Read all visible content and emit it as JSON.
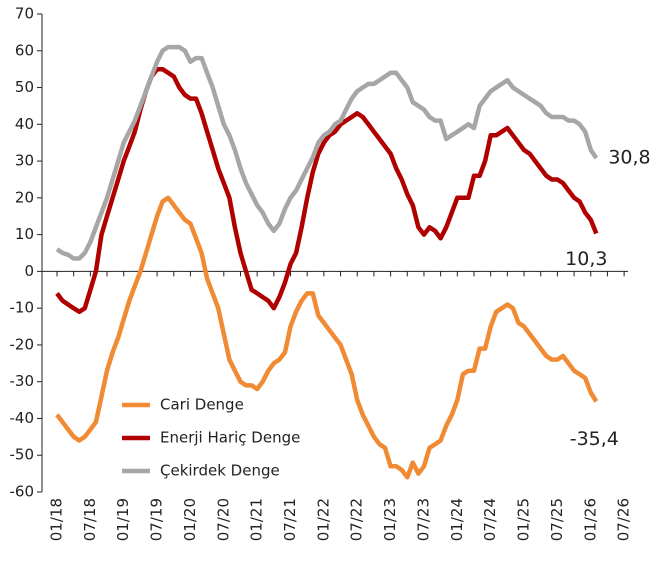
{
  "chart_data": {
    "type": "line",
    "categories": [
      "01/18",
      null,
      null,
      null,
      null,
      null,
      "07/18",
      null,
      null,
      null,
      null,
      null,
      "01/19",
      null,
      null,
      null,
      null,
      null,
      "07/19",
      null,
      null,
      null,
      null,
      null,
      "01/20",
      null,
      null,
      null,
      null,
      null,
      "07/20",
      null,
      null,
      null,
      null,
      null,
      "01/21",
      null,
      null,
      null,
      null,
      null,
      "07/21",
      null,
      null,
      null,
      null,
      null,
      "01/22",
      null,
      null,
      null,
      null,
      null,
      "07/22",
      null,
      null,
      null,
      null,
      null,
      "01/23",
      null,
      null,
      null,
      null,
      null,
      "07/23",
      null,
      null,
      null,
      null,
      null,
      "01/24",
      null,
      null,
      null,
      null,
      null,
      "07/24",
      null,
      null,
      null,
      null,
      null,
      "01/25",
      null,
      null,
      null,
      null,
      null,
      "07/25",
      null,
      null,
      null,
      null,
      null,
      "01/26",
      null,
      null,
      null,
      null,
      null,
      "07/26"
    ],
    "series": [
      {
        "name": "Cari Denge",
        "color": "#f08a33",
        "values": [
          -39,
          -41,
          -43,
          -45,
          -46,
          -45,
          -43,
          -41,
          -34,
          -27,
          -22,
          -18,
          -13,
          -8,
          -4,
          0,
          5,
          10,
          15,
          19,
          20,
          18,
          16,
          14,
          13,
          9,
          5,
          -2,
          -6,
          -10,
          -17,
          -24,
          -27,
          -30,
          -31,
          -31,
          -32,
          -30,
          -27,
          -25,
          -24,
          -22,
          -15,
          -11,
          -8,
          -6,
          -6,
          -12,
          -14,
          -16,
          -18,
          -20,
          -24,
          -28,
          -35,
          -39,
          -42,
          -45,
          -47,
          -48,
          -53,
          -53,
          -54,
          -56,
          -52,
          -55,
          -53,
          -48,
          -47,
          -46,
          -42,
          -39,
          -35,
          -28,
          -27,
          -27,
          -21,
          -21,
          -15,
          -11,
          -10,
          -9,
          -10,
          -14,
          -15,
          -17,
          -19,
          -21,
          -23,
          -24,
          -24,
          -23,
          -25,
          -27,
          -28,
          -29,
          -33,
          -35.4,
          null,
          null,
          null,
          null,
          null
        ],
        "value_labels": [
          null,
          null,
          null,
          null,
          null,
          null,
          null,
          null,
          null,
          null,
          null,
          null,
          null,
          null,
          null,
          null,
          null,
          null,
          null,
          null,
          null,
          null,
          null,
          null,
          null,
          null,
          null,
          null,
          null,
          null,
          null,
          null,
          null,
          null,
          null,
          null,
          null,
          null,
          null,
          null,
          null,
          null,
          null,
          null,
          null,
          null,
          null,
          null,
          null,
          null,
          null,
          null,
          null,
          null,
          null,
          null,
          null,
          null,
          null,
          null,
          null,
          null,
          null,
          null,
          null,
          null,
          null,
          null,
          null,
          null,
          null,
          null,
          null,
          null,
          null,
          null,
          null,
          null,
          null,
          null,
          null,
          null,
          null,
          null,
          null,
          null,
          null,
          null,
          null,
          null,
          null,
          null,
          null,
          null,
          null,
          null,
          null,
          "-35,4",
          null,
          null,
          null,
          null,
          null
        ]
      },
      {
        "name": "Enerji Hariç Denge",
        "color": "#b00000",
        "values": [
          -6,
          -8,
          -9,
          -10,
          -11,
          -10,
          -5,
          0,
          10,
          15,
          20,
          25,
          30,
          34,
          38,
          44,
          49,
          53,
          55,
          55,
          54,
          53,
          50,
          48,
          47,
          47,
          43,
          38,
          33,
          28,
          24,
          20,
          12,
          5,
          0,
          -5,
          -6,
          -7,
          -8,
          -10,
          -7,
          -3,
          2,
          5,
          12,
          20,
          27,
          32,
          35,
          37,
          38,
          40,
          41,
          42,
          43,
          42,
          40,
          38,
          36,
          34,
          32,
          28,
          25,
          21,
          18,
          12,
          10,
          12,
          11,
          9,
          12,
          16,
          20,
          20,
          20,
          26,
          26,
          30,
          37,
          37,
          38,
          39,
          37,
          35,
          33,
          32,
          30,
          28,
          26,
          25,
          25,
          24,
          22,
          20,
          19,
          16,
          14,
          10.3,
          null,
          null,
          null,
          null,
          null
        ],
        "value_labels": [
          null,
          null,
          null,
          null,
          null,
          null,
          null,
          null,
          null,
          null,
          null,
          null,
          null,
          null,
          null,
          null,
          null,
          null,
          null,
          null,
          null,
          null,
          null,
          null,
          null,
          null,
          null,
          null,
          null,
          null,
          null,
          null,
          null,
          null,
          null,
          null,
          null,
          null,
          null,
          null,
          null,
          null,
          null,
          null,
          null,
          null,
          null,
          null,
          null,
          null,
          null,
          null,
          null,
          null,
          null,
          null,
          null,
          null,
          null,
          null,
          null,
          null,
          null,
          null,
          null,
          null,
          null,
          null,
          null,
          null,
          null,
          null,
          null,
          null,
          null,
          null,
          null,
          null,
          null,
          null,
          null,
          null,
          null,
          null,
          null,
          null,
          null,
          null,
          null,
          null,
          null,
          null,
          null,
          null,
          null,
          null,
          null,
          "10,3",
          null,
          null,
          null,
          null,
          null
        ]
      },
      {
        "name": "Çekirdek Denge",
        "color": "#a6a6a6",
        "values": [
          6,
          5,
          4.5,
          3.5,
          3.5,
          5,
          8,
          12,
          16,
          20,
          25,
          30,
          35,
          38,
          41,
          45,
          49,
          53,
          57,
          60,
          61,
          61,
          61,
          60,
          57,
          58,
          58,
          54,
          50,
          45,
          40,
          37,
          33,
          28,
          24,
          21,
          18,
          16,
          13,
          11,
          13,
          17,
          20,
          22,
          25,
          28,
          31,
          35,
          37,
          38,
          40,
          41,
          44,
          47,
          49,
          50,
          51,
          51,
          52,
          53,
          54,
          54,
          52,
          50,
          46,
          45,
          44,
          42,
          41,
          41,
          36,
          37,
          38,
          39,
          40,
          39,
          45,
          47,
          49,
          50,
          51,
          52,
          50,
          49,
          48,
          47,
          46,
          45,
          43,
          42,
          42,
          42,
          41,
          41,
          40,
          38,
          33,
          30.8,
          null,
          null,
          null,
          null,
          null
        ],
        "value_labels": [
          null,
          null,
          null,
          null,
          null,
          null,
          null,
          null,
          null,
          null,
          null,
          null,
          null,
          null,
          null,
          null,
          null,
          null,
          null,
          null,
          null,
          null,
          null,
          null,
          null,
          null,
          null,
          null,
          null,
          null,
          null,
          null,
          null,
          null,
          null,
          null,
          null,
          null,
          null,
          null,
          null,
          null,
          null,
          null,
          null,
          null,
          null,
          null,
          null,
          null,
          null,
          null,
          null,
          null,
          null,
          null,
          null,
          null,
          null,
          null,
          null,
          null,
          null,
          null,
          null,
          null,
          null,
          null,
          null,
          null,
          null,
          null,
          null,
          null,
          null,
          null,
          null,
          null,
          null,
          null,
          null,
          null,
          null,
          null,
          null,
          null,
          null,
          null,
          null,
          null,
          null,
          null,
          null,
          null,
          null,
          null,
          null,
          "30,8",
          null,
          null,
          null,
          null,
          null
        ]
      }
    ],
    "ylim": [
      -60,
      70
    ],
    "yticks": [
      -60,
      -50,
      -40,
      -30,
      -20,
      -10,
      0,
      10,
      20,
      30,
      40,
      50,
      60,
      70
    ],
    "legend": "lower-left"
  }
}
